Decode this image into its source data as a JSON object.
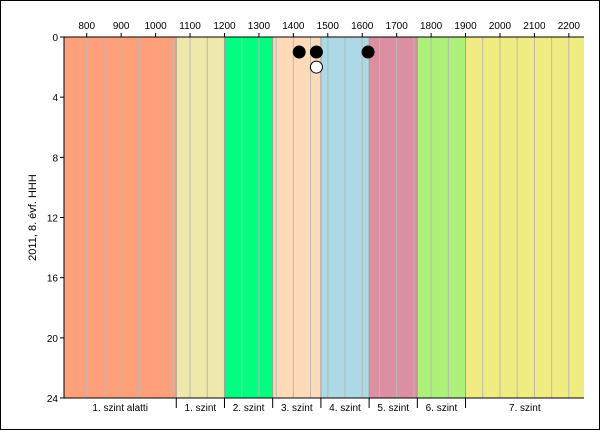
{
  "chart_data": {
    "type": "scatter",
    "ylabel": "2011, 8. évf. HHH",
    "xlabel": "",
    "x_axis_position": "top",
    "y_axis_inverted": true,
    "xlim": [
      734,
      2244
    ],
    "ylim": [
      0,
      24
    ],
    "x_ticks": [
      800,
      900,
      1000,
      1100,
      1200,
      1300,
      1400,
      1500,
      1600,
      1700,
      1800,
      1900,
      2000,
      2100,
      2200
    ],
    "y_ticks": [
      0,
      4,
      8,
      12,
      16,
      20,
      24
    ],
    "grid": "vertical",
    "bands": [
      {
        "label": "1. szint alatti",
        "from": 734,
        "to": 1060,
        "color": "#FFA07A"
      },
      {
        "label": "1. szint",
        "from": 1060,
        "to": 1200,
        "color": "#EEE8AA"
      },
      {
        "label": "2. szint",
        "from": 1200,
        "to": 1340,
        "color": "#00FF7F"
      },
      {
        "label": "3. szint",
        "from": 1340,
        "to": 1480,
        "color": "#FFDAB9"
      },
      {
        "label": "4. szint",
        "from": 1480,
        "to": 1620,
        "color": "#ADD8E6"
      },
      {
        "label": "5. szint",
        "from": 1620,
        "to": 1760,
        "color": "#DB8FA0"
      },
      {
        "label": "6. szint",
        "from": 1760,
        "to": 1900,
        "color": "#ADF07A"
      },
      {
        "label": "7. szint",
        "from": 1900,
        "to": 2244,
        "color": "#F0EC82"
      }
    ],
    "series": [
      {
        "marker": "filled-circle",
        "color": "#000000",
        "points": [
          {
            "x": 1417,
            "y": 1
          },
          {
            "x": 1467,
            "y": 1
          },
          {
            "x": 1617,
            "y": 1
          }
        ]
      },
      {
        "marker": "open-circle",
        "color": "#ffffff",
        "points": [
          {
            "x": 1467,
            "y": 2
          }
        ]
      }
    ]
  }
}
